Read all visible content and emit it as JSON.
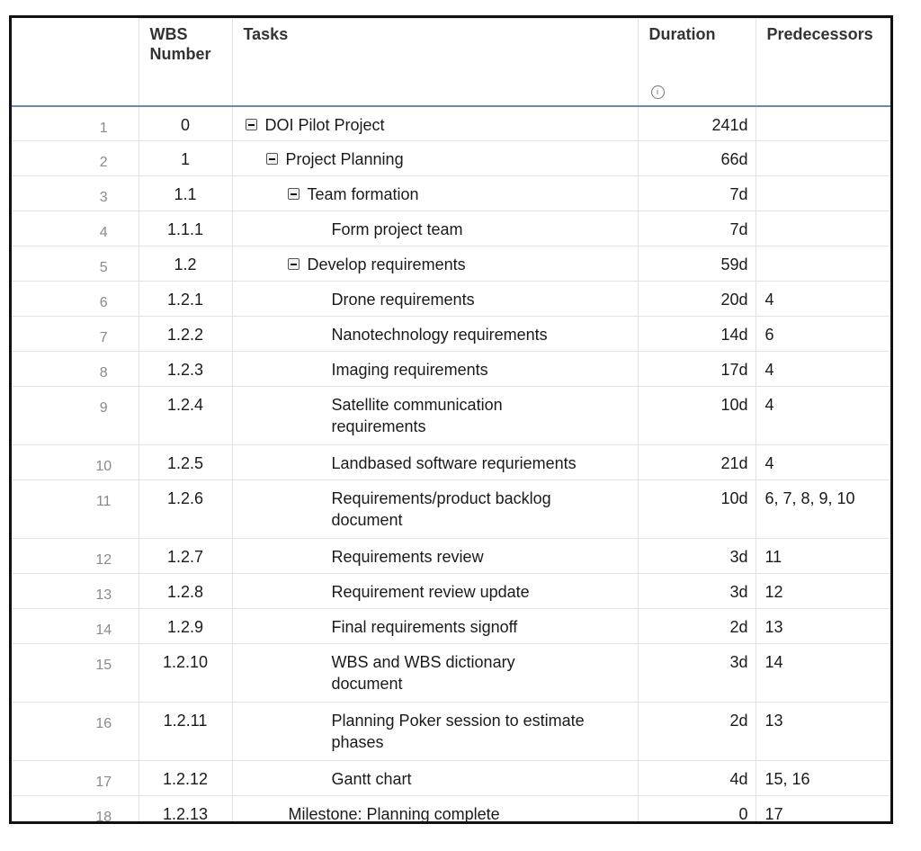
{
  "header": {
    "wbs": "WBS\nNumber",
    "wbs_line1": "WBS",
    "wbs_line2": "Number",
    "tasks": "Tasks",
    "duration": "Duration",
    "duration_icon": "info-icon",
    "predecessors": "Predecessors"
  },
  "rows": [
    {
      "num": "1",
      "wbs": "0",
      "task": "DOI Pilot Project",
      "duration": "241d",
      "pred": ""
    },
    {
      "num": "2",
      "wbs": "1",
      "task": "Project Planning",
      "duration": "66d",
      "pred": ""
    },
    {
      "num": "3",
      "wbs": "1.1",
      "task": "Team formation",
      "duration": "7d",
      "pred": ""
    },
    {
      "num": "4",
      "wbs": "1.1.1",
      "task": "Form project team",
      "duration": "7d",
      "pred": ""
    },
    {
      "num": "5",
      "wbs": "1.2",
      "task": "Develop requirements",
      "duration": "59d",
      "pred": ""
    },
    {
      "num": "6",
      "wbs": "1.2.1",
      "task": "Drone requirements",
      "duration": "20d",
      "pred": "4"
    },
    {
      "num": "7",
      "wbs": "1.2.2",
      "task": "Nanotechnology requirements",
      "duration": "14d",
      "pred": "6"
    },
    {
      "num": "8",
      "wbs": "1.2.3",
      "task": "Imaging requirements",
      "duration": "17d",
      "pred": "4"
    },
    {
      "num": "9",
      "wbs": "1.2.4",
      "task": "Satellite communication requirements",
      "duration": "10d",
      "pred": "4"
    },
    {
      "num": "10",
      "wbs": "1.2.5",
      "task": "Landbased software requriements",
      "duration": "21d",
      "pred": "4"
    },
    {
      "num": "11",
      "wbs": "1.2.6",
      "task": "Requirements/product backlog document",
      "duration": "10d",
      "pred": "6, 7, 8, 9, 10"
    },
    {
      "num": "12",
      "wbs": "1.2.7",
      "task": "Requirements review",
      "duration": "3d",
      "pred": "11"
    },
    {
      "num": "13",
      "wbs": "1.2.8",
      "task": "Requirement review update",
      "duration": "3d",
      "pred": "12"
    },
    {
      "num": "14",
      "wbs": "1.2.9",
      "task": "Final requirements signoff",
      "duration": "2d",
      "pred": "13"
    },
    {
      "num": "15",
      "wbs": "1.2.10",
      "task": "WBS and WBS dictionary document",
      "duration": "3d",
      "pred": "14"
    },
    {
      "num": "16",
      "wbs": "1.2.11",
      "task": "Planning Poker session to estimate phases",
      "duration": "2d",
      "pred": "13"
    },
    {
      "num": "17",
      "wbs": "1.2.12",
      "task": "Gantt chart",
      "duration": "4d",
      "pred": "15, 16"
    },
    {
      "num": "18",
      "wbs": "1.2.13",
      "task": "Milestone: Planning complete",
      "duration": "0",
      "pred": "17"
    }
  ]
}
